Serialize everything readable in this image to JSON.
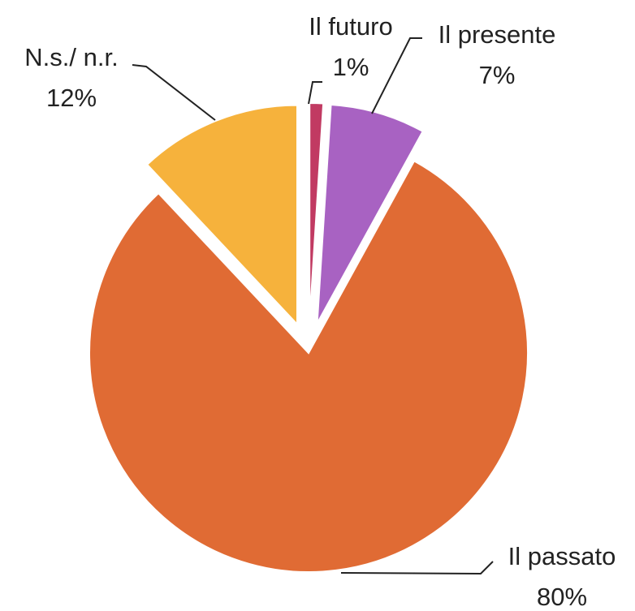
{
  "chart_data": {
    "type": "pie",
    "categories": [
      "Il futuro",
      "Il presente",
      "Il passato",
      "N.s./ n.r."
    ],
    "values": [
      1,
      7,
      80,
      12
    ],
    "value_labels": [
      "1%",
      "7%",
      "80%",
      "12%"
    ],
    "colors": [
      "#c13a62",
      "#a862c2",
      "#e06b34",
      "#f6b23c"
    ]
  }
}
